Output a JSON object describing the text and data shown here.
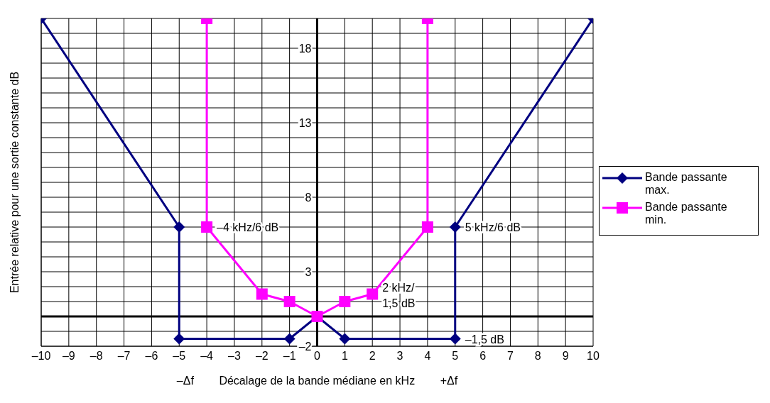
{
  "chart_data": {
    "type": "line",
    "xlabel": "–Δf        Décalage de la bande médiane en kHz        +Δf",
    "ylabel": "Entrée relative pour une sortie constante   dB",
    "xlim": [
      -10,
      10
    ],
    "ylim": [
      -2,
      20
    ],
    "xticks": [
      {
        "value": -10,
        "label": "–10"
      },
      {
        "value": -9,
        "label": "–9"
      },
      {
        "value": -8,
        "label": "–8"
      },
      {
        "value": -7,
        "label": "–7"
      },
      {
        "value": -6,
        "label": "–6"
      },
      {
        "value": -5,
        "label": "–5"
      },
      {
        "value": -4,
        "label": "–4"
      },
      {
        "value": -3,
        "label": "–3"
      },
      {
        "value": -2,
        "label": "–2"
      },
      {
        "value": -1,
        "label": "–1"
      },
      0,
      1,
      2,
      3,
      4,
      5,
      6,
      7,
      8,
      9,
      10
    ],
    "yticks": [
      {
        "value": -2,
        "label": "–2"
      },
      {
        "value": -1,
        "label": null
      },
      {
        "value": 0,
        "label": null
      },
      {
        "value": 1,
        "label": null
      },
      {
        "value": 2,
        "label": null
      },
      3,
      {
        "value": 4,
        "label": null
      },
      {
        "value": 5,
        "label": null
      },
      {
        "value": 6,
        "label": null
      },
      {
        "value": 7,
        "label": null
      },
      8,
      {
        "value": 9,
        "label": null
      },
      {
        "value": 10,
        "label": null
      },
      {
        "value": 11,
        "label": null
      },
      {
        "value": 12,
        "label": null
      },
      13,
      {
        "value": 14,
        "label": null
      },
      {
        "value": 15,
        "label": null
      },
      {
        "value": 16,
        "label": null
      },
      {
        "value": 17,
        "label": null
      },
      18,
      {
        "value": 19,
        "label": null
      },
      {
        "value": 20,
        "label": null
      }
    ],
    "series": [
      {
        "name": "Bande passante max.",
        "color": "#000080",
        "marker": "diamond",
        "x": [
          -10,
          -5,
          -5,
          -1,
          0,
          1,
          5,
          5,
          10
        ],
        "values": [
          20,
          6,
          -1.5,
          -1.5,
          0,
          -1.5,
          -1.5,
          6,
          20
        ]
      },
      {
        "name": "Bande passante min.",
        "color": "#ff00ff",
        "marker": "square",
        "x": [
          -4,
          -4,
          -2,
          -1,
          0,
          1,
          2,
          4,
          4
        ],
        "values": [
          20,
          6,
          1.5,
          1,
          0,
          1,
          1.5,
          6,
          20
        ]
      }
    ],
    "annotations": [
      {
        "text": "–4 kHz/6 dB",
        "x": -4,
        "y": 6
      },
      {
        "text": "5 kHz/6 dB",
        "x": 5,
        "y": 6
      },
      {
        "text": "2 kHz/\n1,5 dB",
        "x": 2,
        "y": 1.5
      },
      {
        "text": "–1,5 dB",
        "x": 5,
        "y": -1.5
      }
    ],
    "grid": true,
    "legend": "right"
  }
}
